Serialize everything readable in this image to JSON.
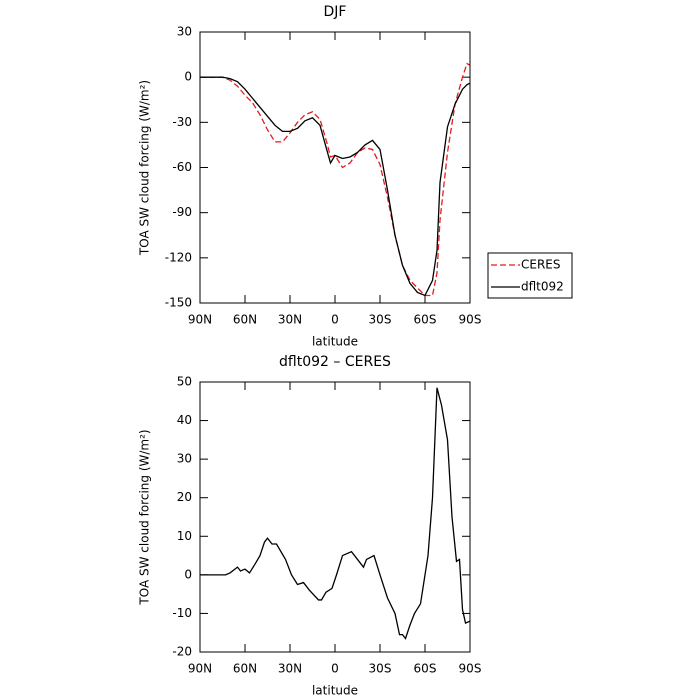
{
  "chart_data": [
    {
      "type": "line",
      "title": "DJF",
      "xlabel": "latitude",
      "ylabel": "TOA SW cloud forcing (W/m²)",
      "x": [
        90,
        85,
        80,
        75,
        70,
        65,
        60,
        55,
        50,
        45,
        40,
        35,
        30,
        25,
        20,
        15,
        10,
        5,
        3,
        0,
        -5,
        -10,
        -15,
        -20,
        -25,
        -30,
        -35,
        -40,
        -45,
        -50,
        -55,
        -60,
        -65,
        -68,
        -70,
        -75,
        -80,
        -85,
        -88,
        -90
      ],
      "xlim": [
        90,
        -90
      ],
      "xticks": [
        {
          "value": 90,
          "label": "90N"
        },
        {
          "value": 60,
          "label": "60N"
        },
        {
          "value": 30,
          "label": "30N"
        },
        0,
        {
          "value": -30,
          "label": "30S"
        },
        {
          "value": -60,
          "label": "60S"
        },
        {
          "value": -90,
          "label": "90S"
        }
      ],
      "ylim": [
        -150,
        30
      ],
      "yticks": [
        -150,
        -120,
        -90,
        -60,
        -30,
        0,
        30
      ],
      "legend": "right",
      "series": [
        {
          "name": "CERES",
          "color": "#e41a1c",
          "style": "dashed",
          "values": [
            0,
            0,
            0,
            0,
            -2,
            -6,
            -12,
            -17,
            -25,
            -35,
            -43,
            -43,
            -37,
            -30,
            -25,
            -23,
            -28,
            -45,
            -53,
            -52,
            -60,
            -57,
            -50,
            -47,
            -48,
            -58,
            -80,
            -105,
            -125,
            -135,
            -140,
            -145,
            -145,
            -130,
            -95,
            -50,
            -18,
            0,
            9,
            8
          ]
        },
        {
          "name": "dflt092",
          "color": "#000000",
          "style": "solid",
          "values": [
            0,
            0,
            0,
            0,
            -1,
            -3,
            -8,
            -14,
            -20,
            -26,
            -32,
            -36,
            -36,
            -34,
            -29,
            -27,
            -32,
            -50,
            -57,
            -52,
            -54,
            -53,
            -50,
            -45,
            -42,
            -48,
            -75,
            -105,
            -125,
            -137,
            -143,
            -145,
            -135,
            -115,
            -70,
            -33,
            -18,
            -8,
            -5,
            -4
          ]
        }
      ]
    },
    {
      "type": "line",
      "title": "dflt092 – CERES",
      "xlabel": "latitude",
      "ylabel": "TOA SW cloud forcing (W/m²)",
      "x": [
        90,
        80,
        73,
        70,
        65,
        63,
        60,
        57,
        53,
        50,
        47,
        45,
        42,
        39,
        33,
        29,
        25,
        21,
        17,
        11,
        9,
        6,
        2,
        -1,
        -5,
        -11,
        -15,
        -19,
        -21,
        -26,
        -30,
        -35,
        -40,
        -43,
        -45,
        -47,
        -50,
        -53,
        -57,
        -62,
        -65,
        -68,
        -71,
        -75,
        -78,
        -81,
        -83,
        -85,
        -87,
        -90
      ],
      "xlim": [
        90,
        -90
      ],
      "xticks": [
        {
          "value": 90,
          "label": "90N"
        },
        {
          "value": 60,
          "label": "60N"
        },
        {
          "value": 30,
          "label": "30N"
        },
        0,
        {
          "value": -30,
          "label": "30S"
        },
        {
          "value": -60,
          "label": "60S"
        },
        {
          "value": -90,
          "label": "90S"
        }
      ],
      "ylim": [
        -20,
        50
      ],
      "yticks": [
        -20,
        -10,
        0,
        10,
        20,
        30,
        40,
        50
      ],
      "color": "#000000",
      "values": [
        0,
        0,
        0,
        0.5,
        2,
        1,
        1.5,
        0.5,
        3,
        5,
        8.5,
        9.5,
        8,
        8,
        4,
        0,
        -2.5,
        -2,
        -4,
        -6.5,
        -6.5,
        -4.5,
        -3.5,
        0,
        5,
        6,
        4,
        2,
        4,
        5,
        0,
        -6,
        -10,
        -15.5,
        -15.5,
        -16.5,
        -13,
        -10,
        -7.5,
        5,
        20,
        48.5,
        44,
        35,
        15,
        3.5,
        4,
        -9,
        -12.5,
        -12
      ]
    }
  ]
}
